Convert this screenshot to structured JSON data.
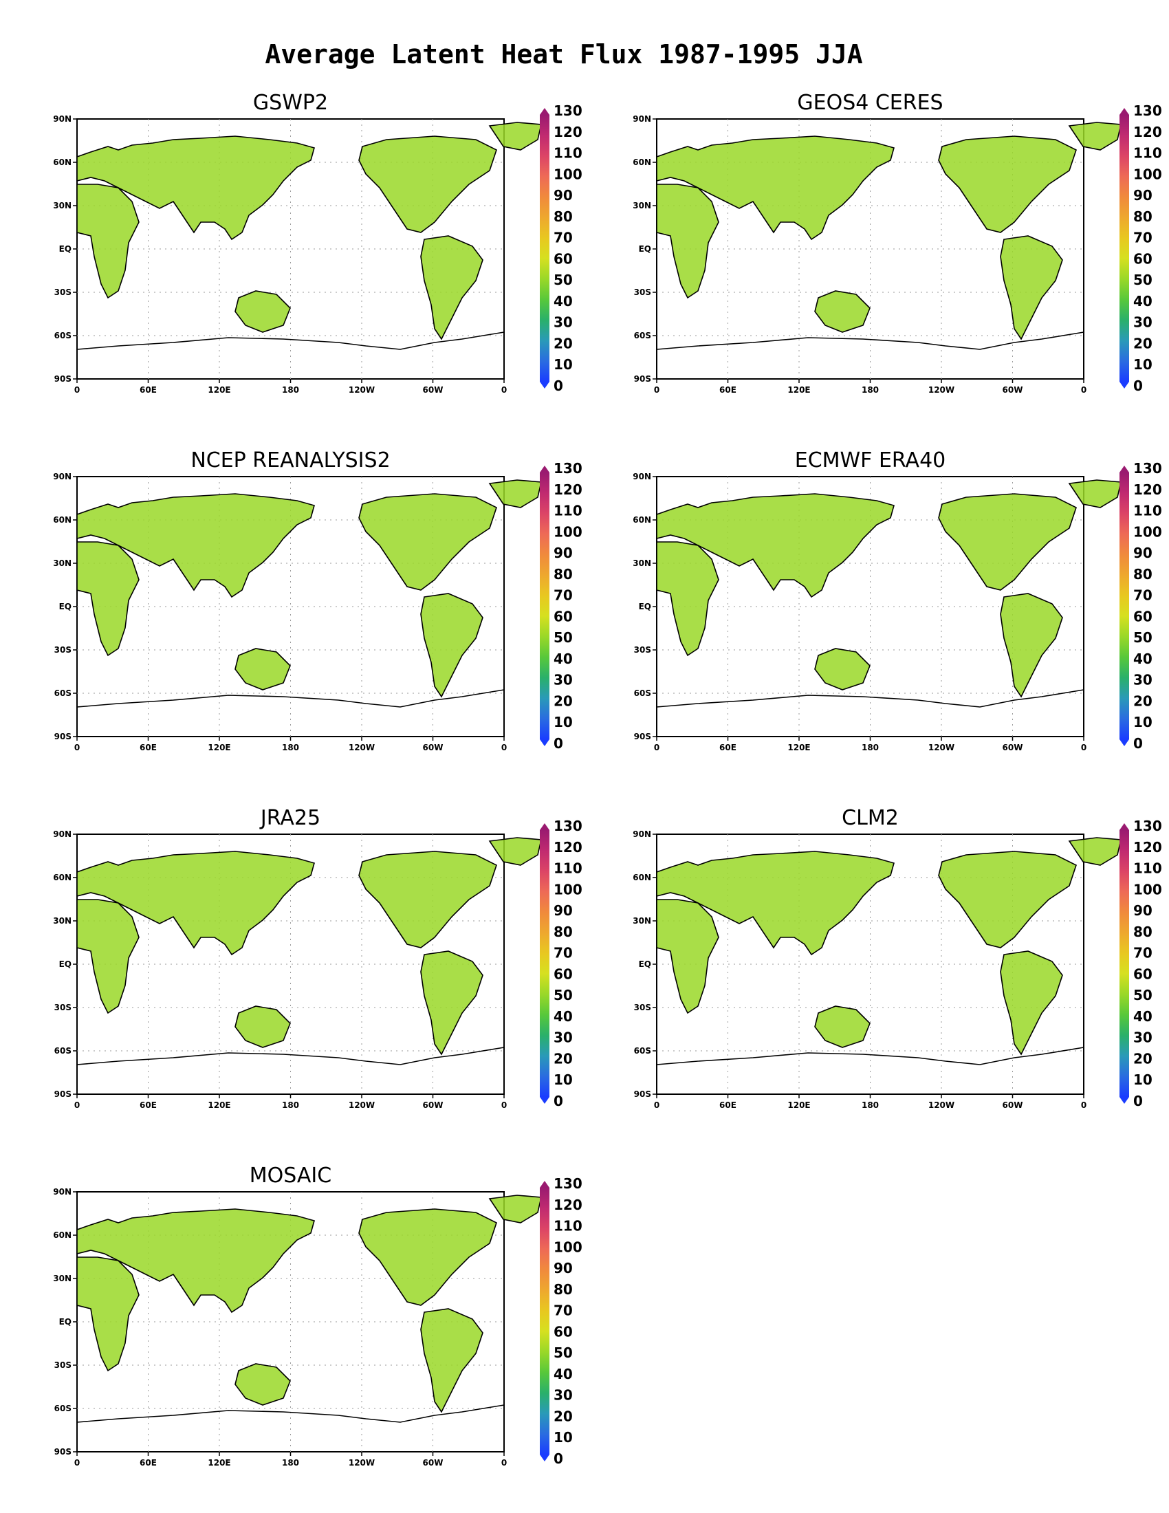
{
  "figure": {
    "title": "Average Latent Heat Flux 1987-1995  JJA"
  },
  "map_axes": {
    "lat_labels": [
      "90N",
      "60N",
      "30N",
      "EQ",
      "30S",
      "60S",
      "90S"
    ],
    "lon_labels": [
      "0",
      "60E",
      "120E",
      "180",
      "120W",
      "60W",
      "0"
    ]
  },
  "colorbar": {
    "ticks": [
      "130",
      "120",
      "110",
      "100",
      "90",
      "80",
      "70",
      "60",
      "50",
      "40",
      "30",
      "20",
      "10",
      "0"
    ],
    "colors": [
      "#1a3cff",
      "#2a6ce0",
      "#2a9ab8",
      "#2ab06a",
      "#58c83a",
      "#9ad828",
      "#d6e020",
      "#e8c820",
      "#eea82e",
      "#f08a3c",
      "#ee6a56",
      "#dc4466",
      "#c02a70",
      "#9a1a70"
    ]
  },
  "panels": [
    {
      "title": "GSWP2"
    },
    {
      "title": "GEOS4 CERES"
    },
    {
      "title": "NCEP REANALYSIS2"
    },
    {
      "title": "ECMWF ERA40"
    },
    {
      "title": "JRA25"
    },
    {
      "title": "CLM2"
    },
    {
      "title": "MOSAIC"
    }
  ]
}
